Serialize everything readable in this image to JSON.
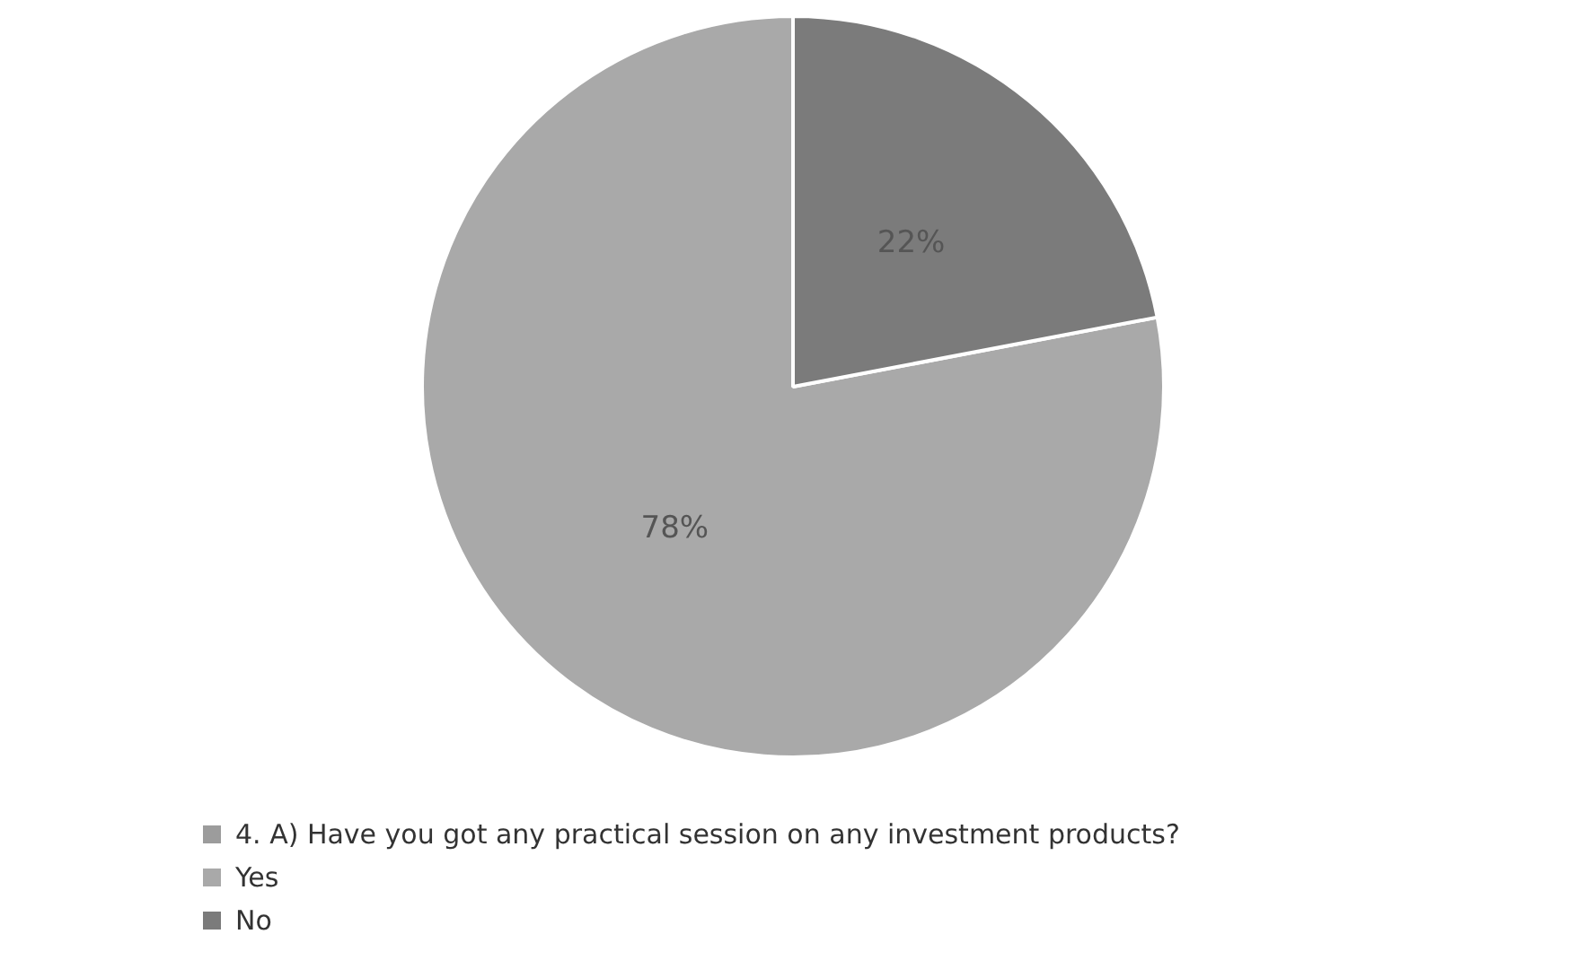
{
  "chart_data": {
    "type": "pie",
    "categories": [
      "4. A) Have you got any practical session on any investment products?",
      "Yes",
      "No"
    ],
    "values": [
      0,
      78,
      22
    ],
    "colors": [
      "#9c9c9c",
      "#a9a9a9",
      "#7b7b7b"
    ],
    "value_labels": [
      null,
      "78%",
      "22%"
    ],
    "legend": "bottom"
  }
}
